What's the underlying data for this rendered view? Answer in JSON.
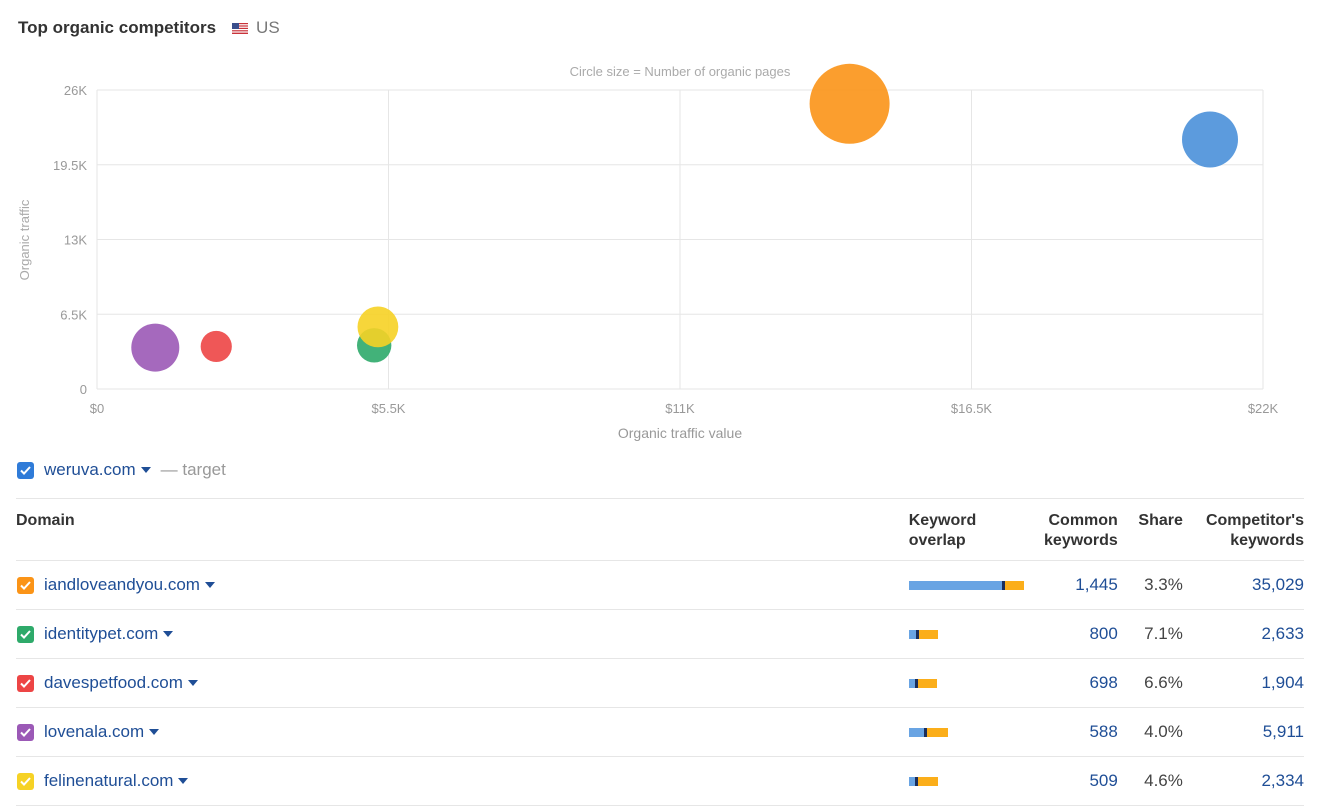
{
  "header": {
    "title": "Top organic competitors",
    "country": "US"
  },
  "chart_data": {
    "type": "scatter",
    "subtitle": "Circle size = Number of organic pages",
    "xlabel": "Organic traffic value",
    "ylabel": "Organic traffic",
    "xlim": [
      0,
      22000
    ],
    "ylim": [
      0,
      26000
    ],
    "xticks": [
      "$0",
      "$5.5K",
      "$11K",
      "$16.5K",
      "$22K"
    ],
    "yticks": [
      "0",
      "6.5K",
      "13K",
      "19.5K",
      "26K"
    ],
    "grid": true,
    "series": [
      {
        "name": "iandloveandyou.com",
        "color": "#fb9417",
        "x": 14200,
        "y": 24800,
        "size": 1.0
      },
      {
        "name": "weruva.com",
        "color": "#4a90d9",
        "x": 21000,
        "y": 21700,
        "size": 0.7
      },
      {
        "name": "lovenala.com",
        "color": "#9b59b6",
        "x": 1100,
        "y": 3600,
        "size": 0.6
      },
      {
        "name": "davespetfood.com",
        "color": "#ed4545",
        "x": 2250,
        "y": 3700,
        "size": 0.39
      },
      {
        "name": "identitypet.com",
        "color": "#2eaa6a",
        "x": 5230,
        "y": 3800,
        "size": 0.43
      },
      {
        "name": "felinenatural.com",
        "color": "#f6d225",
        "x": 5300,
        "y": 5400,
        "size": 0.51
      }
    ]
  },
  "target": {
    "domain": "weruva.com",
    "label": "— target",
    "color": "#2f7bd8"
  },
  "table": {
    "headers": {
      "domain": "Domain",
      "overlap_1": "Keyword",
      "overlap_2": "overlap",
      "common_1": "Common",
      "common_2": "keywords",
      "share": "Share",
      "competitor_1": "Competitor's",
      "competitor_2": "keywords"
    },
    "rows": [
      {
        "domain": "iandloveandyou.com",
        "color": "#fb9417",
        "overlap": [
          0.83,
          0.17
        ],
        "common": "1,445",
        "share": "3.3%",
        "competitor": "35,029"
      },
      {
        "domain": "identitypet.com",
        "color": "#2eaa6a",
        "overlap": [
          0.06,
          0.17
        ],
        "common": "800",
        "share": "7.1%",
        "competitor": "2,633"
      },
      {
        "domain": "davespetfood.com",
        "color": "#ed4545",
        "overlap": [
          0.05,
          0.17
        ],
        "common": "698",
        "share": "6.6%",
        "competitor": "1,904"
      },
      {
        "domain": "lovenala.com",
        "color": "#9b59b6",
        "overlap": [
          0.13,
          0.19
        ],
        "common": "588",
        "share": "4.0%",
        "competitor": "5,911"
      },
      {
        "domain": "felinenatural.com",
        "color": "#f6d225",
        "overlap": [
          0.05,
          0.18
        ],
        "common": "509",
        "share": "4.6%",
        "competitor": "2,334"
      }
    ]
  }
}
